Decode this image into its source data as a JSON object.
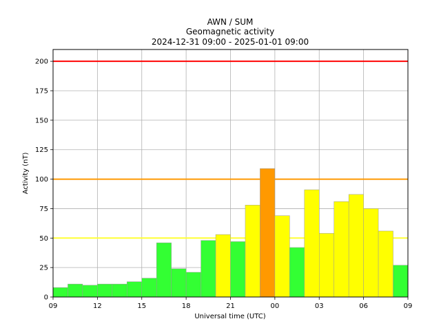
{
  "chart_data": {
    "type": "bar",
    "title": [
      "AWN / SUM",
      "Geomagnetic activity",
      "2024-12-31 09:00 - 2025-01-01 09:00"
    ],
    "xlabel": "Universal time (UTC)",
    "ylabel": "Activity (nT)",
    "xlim": [
      0,
      24
    ],
    "ylim": [
      0,
      210
    ],
    "xticks": [
      {
        "pos": 0,
        "label": "09"
      },
      {
        "pos": 3,
        "label": "12"
      },
      {
        "pos": 6,
        "label": "15"
      },
      {
        "pos": 9,
        "label": "18"
      },
      {
        "pos": 12,
        "label": "21"
      },
      {
        "pos": 15,
        "label": "00"
      },
      {
        "pos": 18,
        "label": "03"
      },
      {
        "pos": 21,
        "label": "06"
      },
      {
        "pos": 24,
        "label": "09"
      }
    ],
    "yticks": [
      0,
      25,
      50,
      75,
      100,
      125,
      150,
      175,
      200
    ],
    "grid": true,
    "bars": [
      {
        "value": 8,
        "color": "#33ff33"
      },
      {
        "value": 11,
        "color": "#33ff33"
      },
      {
        "value": 10,
        "color": "#33ff33"
      },
      {
        "value": 11,
        "color": "#33ff33"
      },
      {
        "value": 11,
        "color": "#33ff33"
      },
      {
        "value": 13,
        "color": "#33ff33"
      },
      {
        "value": 16,
        "color": "#33ff33"
      },
      {
        "value": 46,
        "color": "#33ff33"
      },
      {
        "value": 24,
        "color": "#33ff33"
      },
      {
        "value": 21,
        "color": "#33ff33"
      },
      {
        "value": 48,
        "color": "#33ff33"
      },
      {
        "value": 53,
        "color": "#ffff00"
      },
      {
        "value": 47,
        "color": "#33ff33"
      },
      {
        "value": 78,
        "color": "#ffff00"
      },
      {
        "value": 109,
        "color": "#ff9900"
      },
      {
        "value": 69,
        "color": "#ffff00"
      },
      {
        "value": 42,
        "color": "#33ff33"
      },
      {
        "value": 91,
        "color": "#ffff00"
      },
      {
        "value": 54,
        "color": "#ffff00"
      },
      {
        "value": 81,
        "color": "#ffff00"
      },
      {
        "value": 87,
        "color": "#ffff00"
      },
      {
        "value": 75,
        "color": "#ffff00"
      },
      {
        "value": 56,
        "color": "#ffff00"
      },
      {
        "value": 27,
        "color": "#33ff33"
      }
    ],
    "thresholds": [
      {
        "value": 50,
        "color": "#ffff33"
      },
      {
        "value": 100,
        "color": "#ff9900"
      },
      {
        "value": 200,
        "color": "#ff0000"
      }
    ]
  }
}
